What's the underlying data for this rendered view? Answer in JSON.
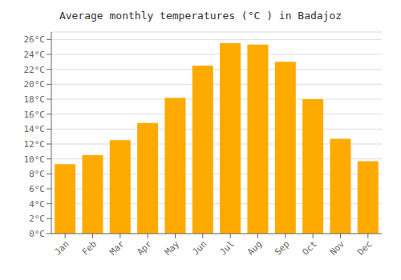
{
  "chart_data": {
    "type": "bar",
    "title": "Average monthly temperatures (°C ) in Badajoz",
    "categories": [
      "Jan",
      "Feb",
      "Mar",
      "Apr",
      "May",
      "Jun",
      "Jul",
      "Aug",
      "Sep",
      "Oct",
      "Nov",
      "Dec"
    ],
    "values": [
      9.3,
      10.5,
      12.5,
      14.8,
      18.2,
      22.5,
      25.5,
      25.3,
      23.0,
      18.0,
      12.7,
      9.7
    ],
    "color": "#FFAA00",
    "ylim": [
      0,
      27
    ],
    "yticks": [
      {
        "value": 0,
        "label": "0°C"
      },
      {
        "value": 2,
        "label": "2°C"
      },
      {
        "value": 4,
        "label": "4°C"
      },
      {
        "value": 6,
        "label": "6°C"
      },
      {
        "value": 8,
        "label": "8°C"
      },
      {
        "value": 10,
        "label": "10°C"
      },
      {
        "value": 12,
        "label": "12°C"
      },
      {
        "value": 14,
        "label": "14°C"
      },
      {
        "value": 16,
        "label": "16°C"
      },
      {
        "value": 18,
        "label": "18°C"
      },
      {
        "value": 20,
        "label": "20°C"
      },
      {
        "value": 22,
        "label": "22°C"
      },
      {
        "value": 24,
        "label": "24°C"
      },
      {
        "value": 26,
        "label": "26°C"
      }
    ],
    "grid": true
  }
}
